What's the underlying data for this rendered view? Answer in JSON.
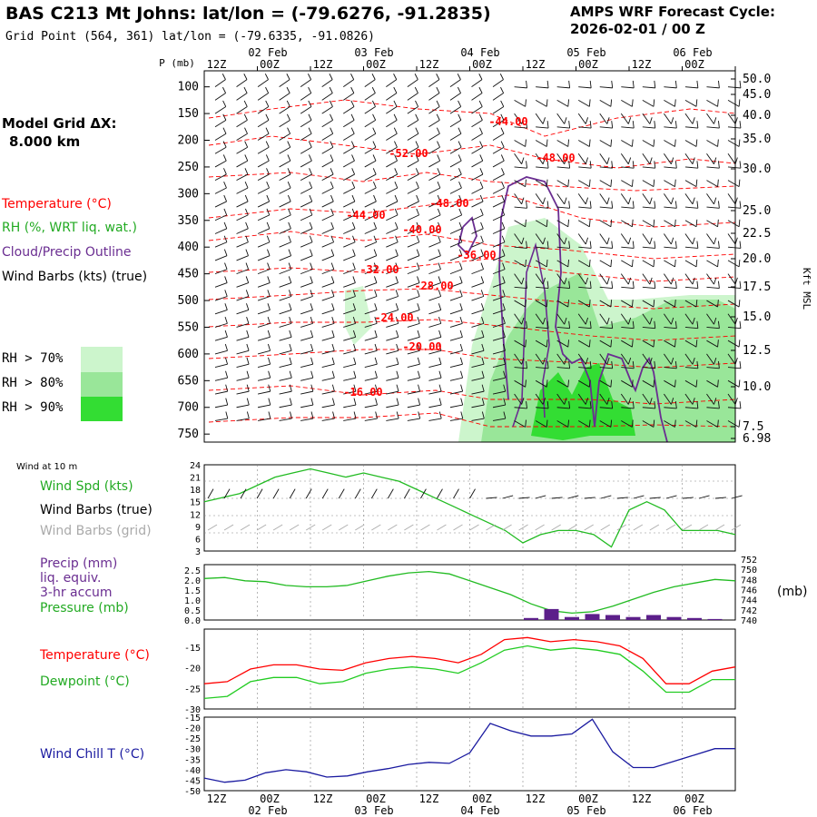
{
  "header": {
    "station_title": "BAS C213 Mt Johns:  lat/lon = (-79.6276, -91.2835)",
    "grid_point": "Grid Point (564, 361) lat/lon = (-79.6335, -91.0826)",
    "forecast_label": "AMPS WRF Forecast Cycle:",
    "forecast_cycle": "2026-02-01 / 00  Z",
    "model_grid_label": "Model Grid ΔX:",
    "model_grid_value": "8.000 km"
  },
  "legend": {
    "temperature": "Temperature (°C)",
    "rh": "RH (%, WRT liq. wat.)",
    "cloud": "Cloud/Precip Outline",
    "wind_barbs": "Wind Barbs (kts) (true)",
    "rh_levels": [
      "RH > 70%",
      "RH > 80%",
      "RH > 90%"
    ],
    "wind_at_10m": "Wind at 10 m",
    "wind_spd": "Wind Spd (kts)",
    "wind_barbs_true": "Wind Barbs (true)",
    "wind_barbs_grid": "Wind Barbs (grid)",
    "precip": "Precip (mm)",
    "liq_equiv": "liq. equiv.",
    "accum": "3-hr accum",
    "pressure": "Pressure (mb)",
    "pressure_unit": "(mb)",
    "temp2": "Temperature (°C)",
    "dewpoint": "Dewpoint (°C)",
    "wind_chill": "Wind Chill T (°C)",
    "kft_msl": "Kft MSL",
    "p_mb": "P (mb)"
  },
  "colors": {
    "temperature": "#ff0000",
    "rh70": "#ccf5cc",
    "rh80": "#99e699",
    "rh90": "#33dd33",
    "cloud": "#6a2d91",
    "wind_spd": "#22bb22",
    "barbs_grid": "#aaaaaa",
    "precip": "#5c1f8a",
    "pressure": "#22bb22",
    "dewpoint": "#22cc22",
    "wind_chill": "#1a1aa0"
  },
  "time_axis": {
    "top_hours": [
      "12Z",
      "00Z",
      "12Z",
      "00Z",
      "12Z",
      "00Z",
      "12Z",
      "00Z",
      "12Z",
      "00Z"
    ],
    "top_dates": [
      "02 Feb",
      "03 Feb",
      "04 Feb",
      "05 Feb",
      "06 Feb"
    ],
    "bottom_hours": [
      "12Z",
      "00Z",
      "12Z",
      "00Z",
      "12Z",
      "00Z",
      "12Z",
      "00Z",
      "12Z",
      "00Z"
    ],
    "bottom_dates": [
      "02 Feb",
      "03 Feb",
      "04 Feb",
      "05 Feb",
      "06 Feb"
    ]
  },
  "chart_data": [
    {
      "type": "heatmap",
      "title": "",
      "ylabel": "P (mb)",
      "ylabel_right": "Kft MSL",
      "pressure_ticks": [
        100,
        150,
        200,
        250,
        300,
        350,
        400,
        450,
        500,
        550,
        600,
        650,
        700,
        750
      ],
      "height_ticks_kft": [
        "50.0",
        "45.0",
        "40.0",
        "35.0",
        "30.0",
        "25.0",
        "22.5",
        "20.0",
        "17.5",
        "15.0",
        "12.5",
        "10.0",
        "7.5",
        "6.98"
      ],
      "temperature_contour_labels": [
        "-44.00",
        "-52.00",
        "-48.00",
        "-48.00",
        "-44.00",
        "-40.00",
        "-36.00",
        "-32.00",
        "-28.00",
        "-24.00",
        "-20.00",
        "-16.00"
      ]
    },
    {
      "type": "line",
      "title": "",
      "series": [
        {
          "name": "Wind Spd (kts)",
          "values": [
            15,
            16,
            17,
            19,
            21,
            22,
            23,
            22,
            21,
            22,
            21,
            20,
            18,
            16,
            14,
            12,
            10,
            8,
            5,
            7,
            8,
            8,
            7,
            4,
            13,
            15,
            13,
            8,
            8,
            8,
            7
          ]
        }
      ],
      "ylim": [
        3,
        24
      ],
      "yticks": [
        "24",
        "21",
        "18",
        "15",
        "12",
        "9",
        "6",
        "3"
      ]
    },
    {
      "type": "line",
      "title": "",
      "series": [
        {
          "name": "Pressure (mb)",
          "values": [
            749,
            749.2,
            748.5,
            748.3,
            747.5,
            747.2,
            747.2,
            747.5,
            748.5,
            749.5,
            750.2,
            750.5,
            750,
            748.5,
            747,
            745.5,
            743.5,
            742,
            741.5,
            741.8,
            743,
            744.5,
            746,
            747.2,
            748,
            748.8,
            748.5
          ]
        },
        {
          "name": "Precip (mm)",
          "values": [
            0,
            0,
            0,
            0,
            0,
            0,
            0,
            0,
            0,
            0,
            0,
            0,
            0,
            0,
            0,
            0,
            0.1,
            0.55,
            0.15,
            0.3,
            0.25,
            0.15,
            0.25,
            0.15,
            0.1,
            0.05,
            0
          ]
        }
      ],
      "yticks_left": [
        "2.5",
        "2.0",
        "1.5",
        "1.0",
        "0.5",
        "0.0"
      ],
      "yticks_right": [
        "752",
        "750",
        "748",
        "746",
        "744",
        "742",
        "740"
      ]
    },
    {
      "type": "line",
      "title": "",
      "series": [
        {
          "name": "Temperature (°C)",
          "values": [
            -24,
            -23.5,
            -20.5,
            -19.5,
            -19.5,
            -20.5,
            -20.8,
            -19,
            -18,
            -17.5,
            -18,
            -19,
            -17,
            -13.5,
            -13,
            -14,
            -13.5,
            -14,
            -15,
            -18,
            -24,
            -24,
            -21,
            -20
          ]
        },
        {
          "name": "Dewpoint (°C)",
          "values": [
            -27.5,
            -27,
            -23.5,
            -22.5,
            -22.5,
            -24,
            -23.5,
            -21.5,
            -20.5,
            -20,
            -20.5,
            -21.5,
            -19,
            -16,
            -15,
            -16,
            -15.5,
            -16,
            -17,
            -21,
            -26,
            -26,
            -23,
            -23
          ]
        }
      ],
      "yticks": [
        "-15",
        "-20",
        "-25",
        "-30"
      ]
    },
    {
      "type": "line",
      "title": "",
      "series": [
        {
          "name": "Wind Chill T (°C)",
          "values": [
            -44,
            -46,
            -45,
            -41.5,
            -40,
            -41,
            -43.5,
            -43,
            -41,
            -39.5,
            -37.5,
            -36.5,
            -37,
            -32,
            -18,
            -21.5,
            -24,
            -24,
            -23,
            -16,
            -31.5,
            -39,
            -39,
            -36,
            -33,
            -30,
            -30
          ]
        }
      ],
      "yticks": [
        "-15",
        "-20",
        "-25",
        "-30",
        "-35",
        "-40",
        "-45",
        "-50"
      ]
    }
  ]
}
